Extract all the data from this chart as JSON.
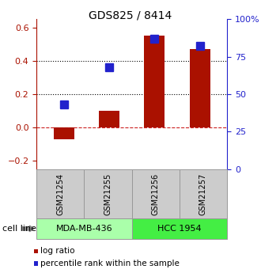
{
  "title": "GDS825 / 8414",
  "samples": [
    "GSM21254",
    "GSM21255",
    "GSM21256",
    "GSM21257"
  ],
  "log_ratio": [
    -0.07,
    0.1,
    0.55,
    0.47
  ],
  "percentile_rank": [
    43,
    68,
    87,
    82
  ],
  "cell_lines": [
    "MDA-MB-436",
    "HCC 1954"
  ],
  "cell_line_spans": [
    [
      0,
      1
    ],
    [
      2,
      3
    ]
  ],
  "cell_line_colors": [
    "#aaffaa",
    "#44ee44"
  ],
  "bar_color": "#aa1100",
  "percentile_color": "#2222cc",
  "ylim_left": [
    -0.25,
    0.65
  ],
  "ylim_right": [
    0,
    100
  ],
  "yticks_left": [
    -0.2,
    0.0,
    0.2,
    0.4,
    0.6
  ],
  "yticks_right": [
    0,
    25,
    50,
    75,
    100
  ],
  "ytick_labels_right": [
    "0",
    "25",
    "50",
    "75",
    "100%"
  ],
  "hlines_dotted": [
    0.2,
    0.4
  ],
  "hline_dashed_color": "#cc2222",
  "bar_width": 0.45,
  "percentile_marker_size": 7,
  "sample_box_color": "#cccccc",
  "sample_box_edge_color": "#999999",
  "bg_color": "#ffffff",
  "title_fontsize": 10,
  "tick_fontsize": 8,
  "sample_fontsize": 7,
  "cell_fontsize": 8,
  "legend_fontsize": 7.5
}
